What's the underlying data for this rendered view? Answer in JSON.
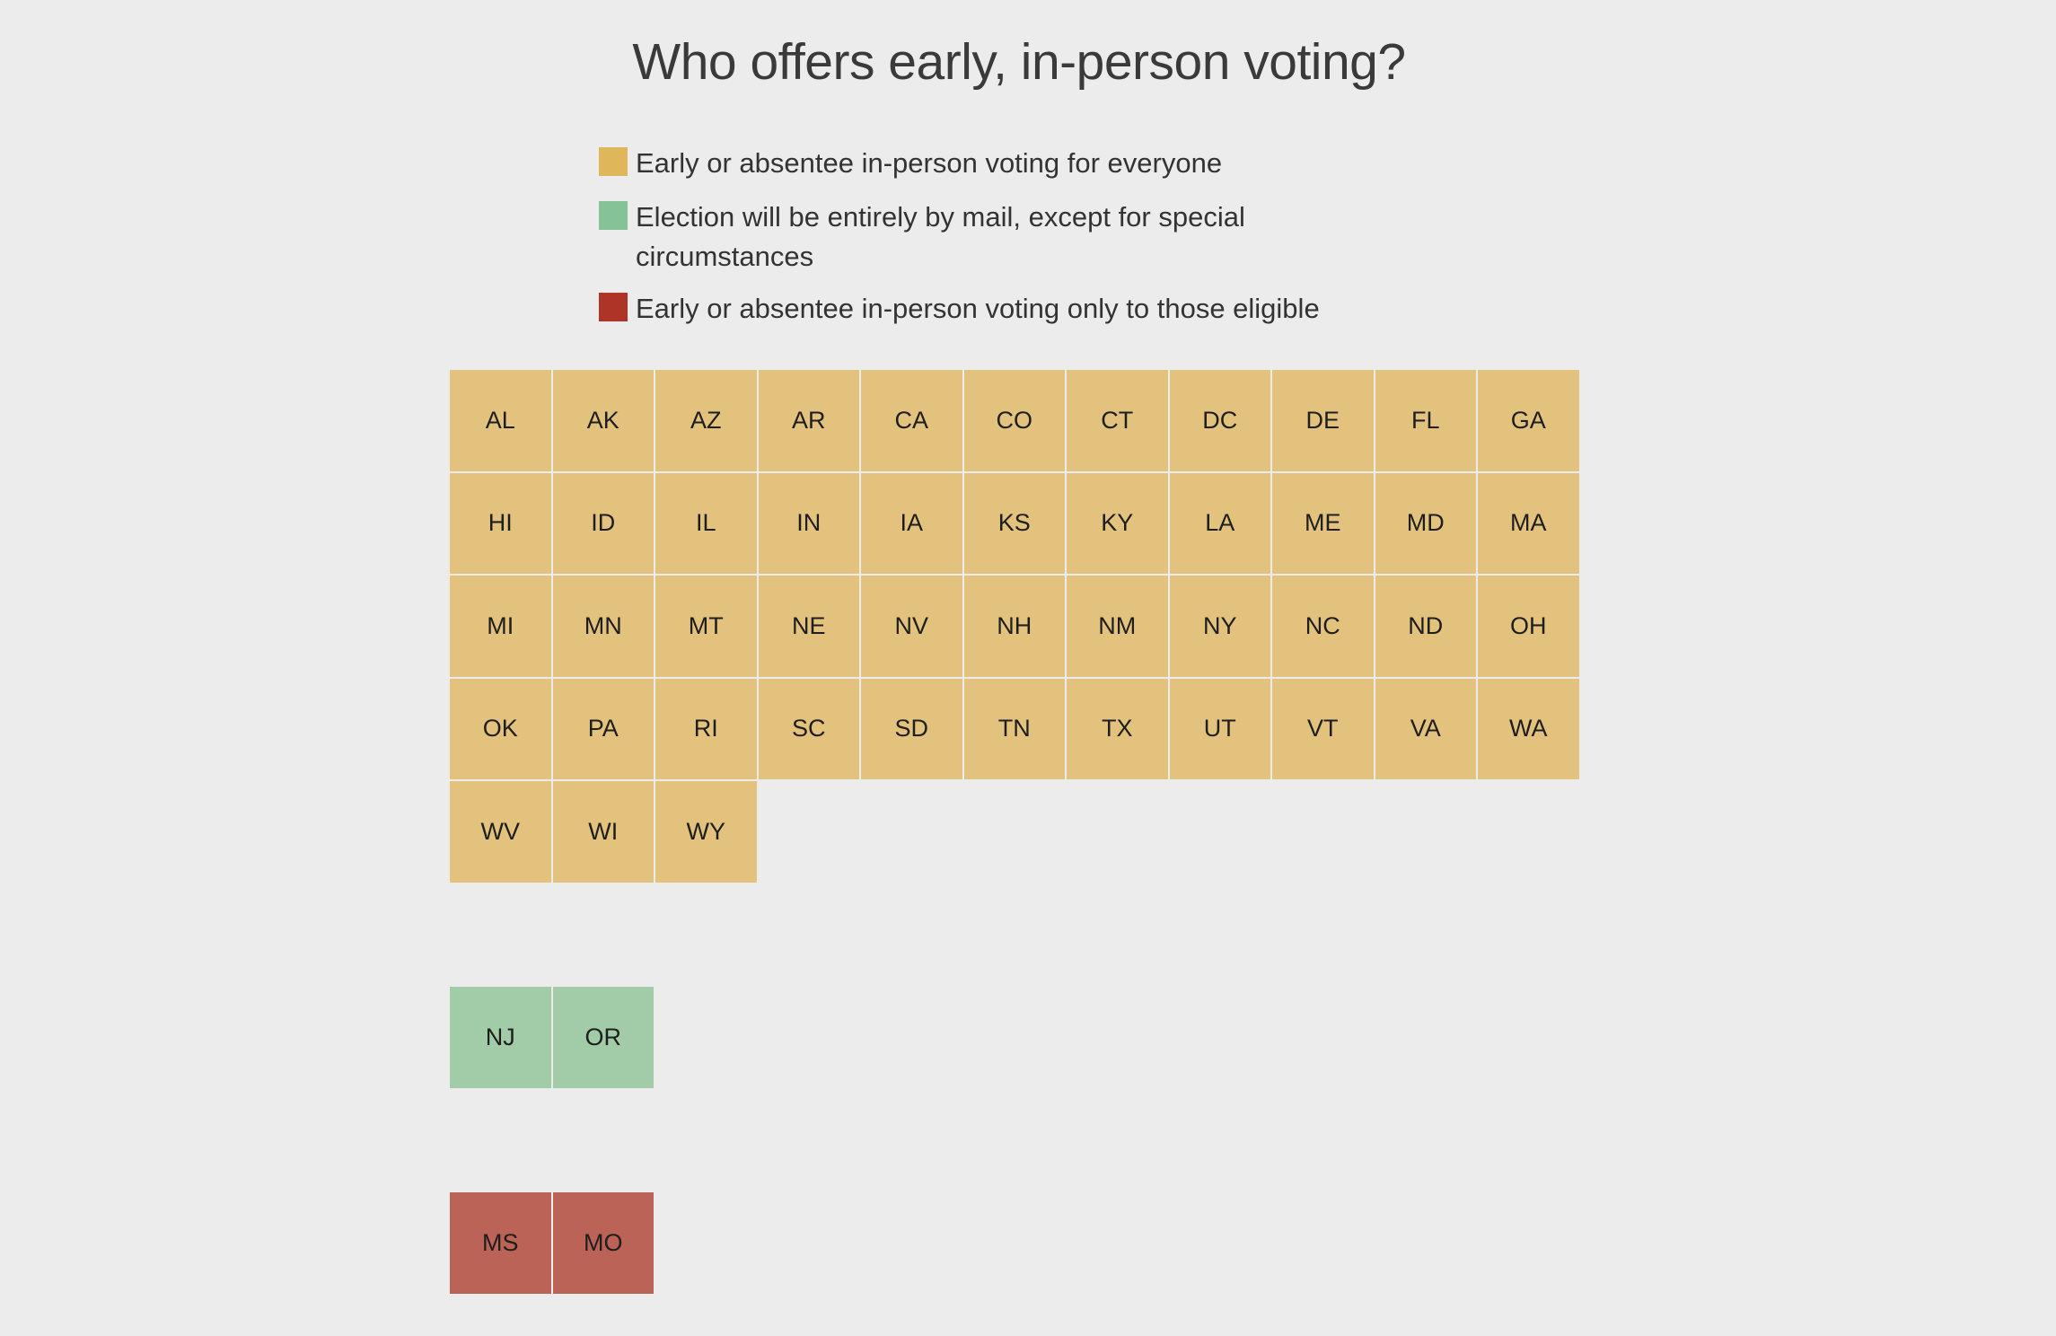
{
  "chart_data": {
    "type": "table",
    "title": "Who offers early, in-person voting?",
    "legend": [
      {
        "label": "Early or absentee in-person voting for everyone",
        "color": "#e0b65a",
        "tile_color": "#e2c27d"
      },
      {
        "label": "Election will be entirely by mail, except for special circumstances",
        "color": "#86c297",
        "tile_color": "#a1cca7"
      },
      {
        "label": "Early or absentee in-person voting only to those eligible",
        "color": "#ad3426",
        "tile_color": "#bb6356"
      }
    ],
    "groups": [
      {
        "category": "Early or absentee in-person voting for everyone",
        "states": [
          "AL",
          "AK",
          "AZ",
          "AR",
          "CA",
          "CO",
          "CT",
          "DC",
          "DE",
          "FL",
          "GA",
          "HI",
          "ID",
          "IL",
          "IN",
          "IA",
          "KS",
          "KY",
          "LA",
          "ME",
          "MD",
          "MA",
          "MI",
          "MN",
          "MT",
          "NE",
          "NV",
          "NH",
          "NM",
          "NY",
          "NC",
          "ND",
          "OH",
          "OK",
          "PA",
          "RI",
          "SC",
          "SD",
          "TN",
          "TX",
          "UT",
          "VT",
          "VA",
          "WA",
          "WV",
          "WI",
          "WY"
        ]
      },
      {
        "category": "Election will be entirely by mail, except for special circumstances",
        "states": [
          "NJ",
          "OR"
        ]
      },
      {
        "category": "Early or absentee in-person voting only to those eligible",
        "states": [
          "MS",
          "MO"
        ]
      }
    ]
  }
}
